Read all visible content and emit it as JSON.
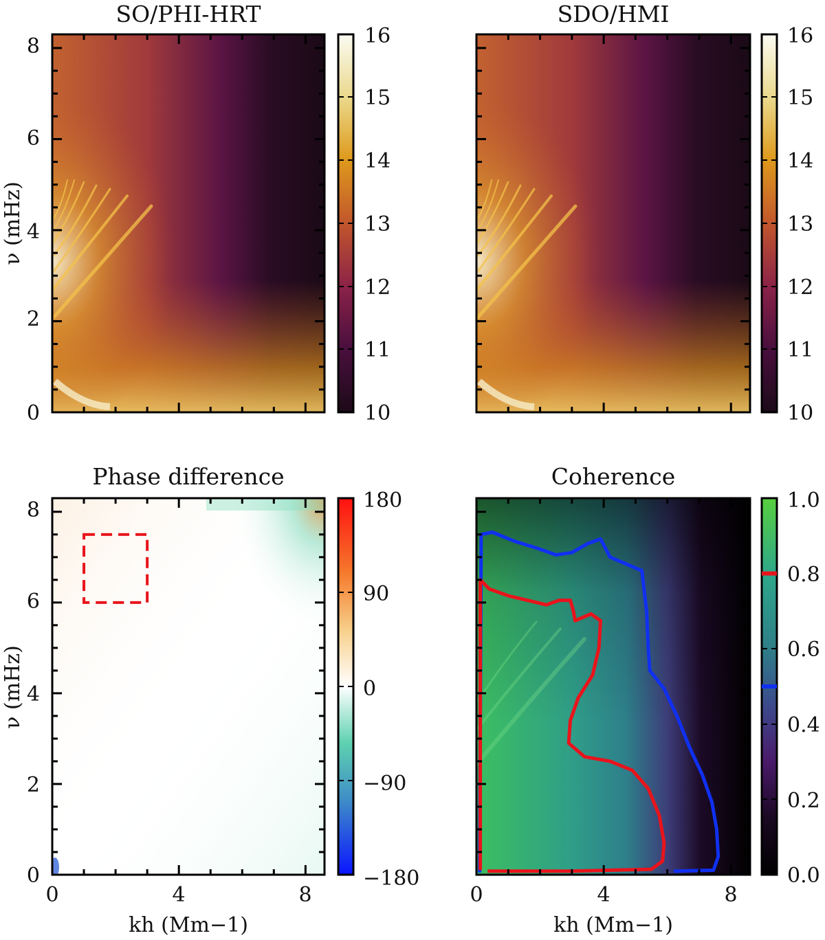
{
  "figure": {
    "panels": [
      "SO/PHI-HRT",
      "SDO/HMI",
      "Phase difference",
      "Coherence"
    ]
  },
  "chart_data": [
    {
      "type": "heatmap",
      "title": "SO/PHI-HRT",
      "xlabel": "",
      "ylabel": "ν (mHz)",
      "xlim": [
        0,
        8.6
      ],
      "ylim": [
        0,
        8.3
      ],
      "xticks": [],
      "yticks": [
        "0",
        "2",
        "4",
        "6",
        "8"
      ],
      "colorbar": {
        "min": 10,
        "max": 16,
        "ticks": [
          "10",
          "11",
          "12",
          "13",
          "14",
          "15",
          "16"
        ],
        "colormap": "inferno-like"
      }
    },
    {
      "type": "heatmap",
      "title": "SDO/HMI",
      "xlabel": "",
      "ylabel": "",
      "xlim": [
        0,
        8.6
      ],
      "ylim": [
        0,
        8.3
      ],
      "xticks": [],
      "yticks": [],
      "colorbar": {
        "min": 10,
        "max": 16,
        "ticks": [
          "10",
          "11",
          "12",
          "13",
          "14",
          "15",
          "16"
        ],
        "colormap": "inferno-like"
      }
    },
    {
      "type": "heatmap",
      "title": "Phase difference",
      "xlabel": "kh (Mm−1)",
      "ylabel": "ν (mHz)",
      "xlim": [
        0,
        8.6
      ],
      "ylim": [
        0,
        8.3
      ],
      "xticks": [
        "0",
        "4",
        "8"
      ],
      "yticks": [
        "0",
        "2",
        "4",
        "6",
        "8"
      ],
      "colorbar": {
        "min": -180,
        "max": 180,
        "ticks": [
          "−180",
          "−90",
          "0",
          "90",
          "180"
        ],
        "colormap": "diverging blue-white-red"
      },
      "annotations": [
        {
          "type": "dashed-rectangle",
          "color": "#e8141c",
          "x_range": [
            1,
            3
          ],
          "y_range": [
            6,
            7.5
          ]
        }
      ]
    },
    {
      "type": "heatmap",
      "title": "Coherence",
      "xlabel": "kh (Mm−1)",
      "ylabel": "",
      "xlim": [
        0,
        8.6
      ],
      "ylim": [
        0,
        8.3
      ],
      "xticks": [
        "0",
        "4",
        "8"
      ],
      "yticks": [],
      "colorbar": {
        "min": 0.0,
        "max": 1.0,
        "ticks": [
          "0.0",
          "0.2",
          "0.4",
          "0.6",
          "0.8",
          "1.0"
        ],
        "colormap": "black-purple-teal-green",
        "markers": [
          {
            "value": 0.5,
            "color": "#1030f0"
          },
          {
            "value": 0.8,
            "color": "#e8141c"
          }
        ]
      },
      "contours": [
        {
          "level": 0.5,
          "color": "#1030f0",
          "points": [
            [
              0.1,
              0.05
            ],
            [
              0.15,
              7.5
            ],
            [
              0.5,
              7.55
            ],
            [
              1.2,
              7.35
            ],
            [
              1.9,
              7.2
            ],
            [
              2.5,
              7.05
            ],
            [
              3.0,
              7.1
            ],
            [
              3.5,
              7.3
            ],
            [
              3.9,
              7.4
            ],
            [
              4.2,
              7.0
            ],
            [
              4.7,
              6.85
            ],
            [
              5.2,
              6.7
            ],
            [
              5.35,
              5.8
            ],
            [
              5.4,
              5.0
            ],
            [
              5.45,
              4.5
            ],
            [
              5.9,
              4.1
            ],
            [
              6.3,
              3.5
            ],
            [
              6.7,
              2.8
            ],
            [
              7.1,
              2.2
            ],
            [
              7.4,
              1.6
            ],
            [
              7.55,
              1.0
            ],
            [
              7.6,
              0.4
            ],
            [
              7.45,
              0.1
            ],
            [
              6.2,
              0.08
            ]
          ]
        },
        {
          "level": 0.8,
          "color": "#e8141c",
          "points": [
            [
              0.12,
              0.1
            ],
            [
              0.12,
              6.5
            ],
            [
              0.4,
              6.3
            ],
            [
              1.0,
              6.15
            ],
            [
              1.6,
              6.05
            ],
            [
              2.2,
              5.95
            ],
            [
              2.6,
              6.05
            ],
            [
              2.95,
              6.05
            ],
            [
              3.05,
              5.8
            ],
            [
              3.1,
              5.6
            ],
            [
              3.6,
              5.75
            ],
            [
              3.9,
              5.6
            ],
            [
              3.85,
              5.0
            ],
            [
              3.65,
              4.4
            ],
            [
              3.2,
              3.9
            ],
            [
              2.95,
              3.4
            ],
            [
              2.9,
              2.9
            ],
            [
              3.4,
              2.6
            ],
            [
              4.2,
              2.5
            ],
            [
              4.9,
              2.3
            ],
            [
              5.4,
              1.9
            ],
            [
              5.75,
              1.3
            ],
            [
              5.9,
              0.7
            ],
            [
              5.85,
              0.3
            ],
            [
              5.5,
              0.12
            ],
            [
              3.0,
              0.08
            ],
            [
              0.35,
              0.08
            ]
          ]
        }
      ]
    }
  ]
}
